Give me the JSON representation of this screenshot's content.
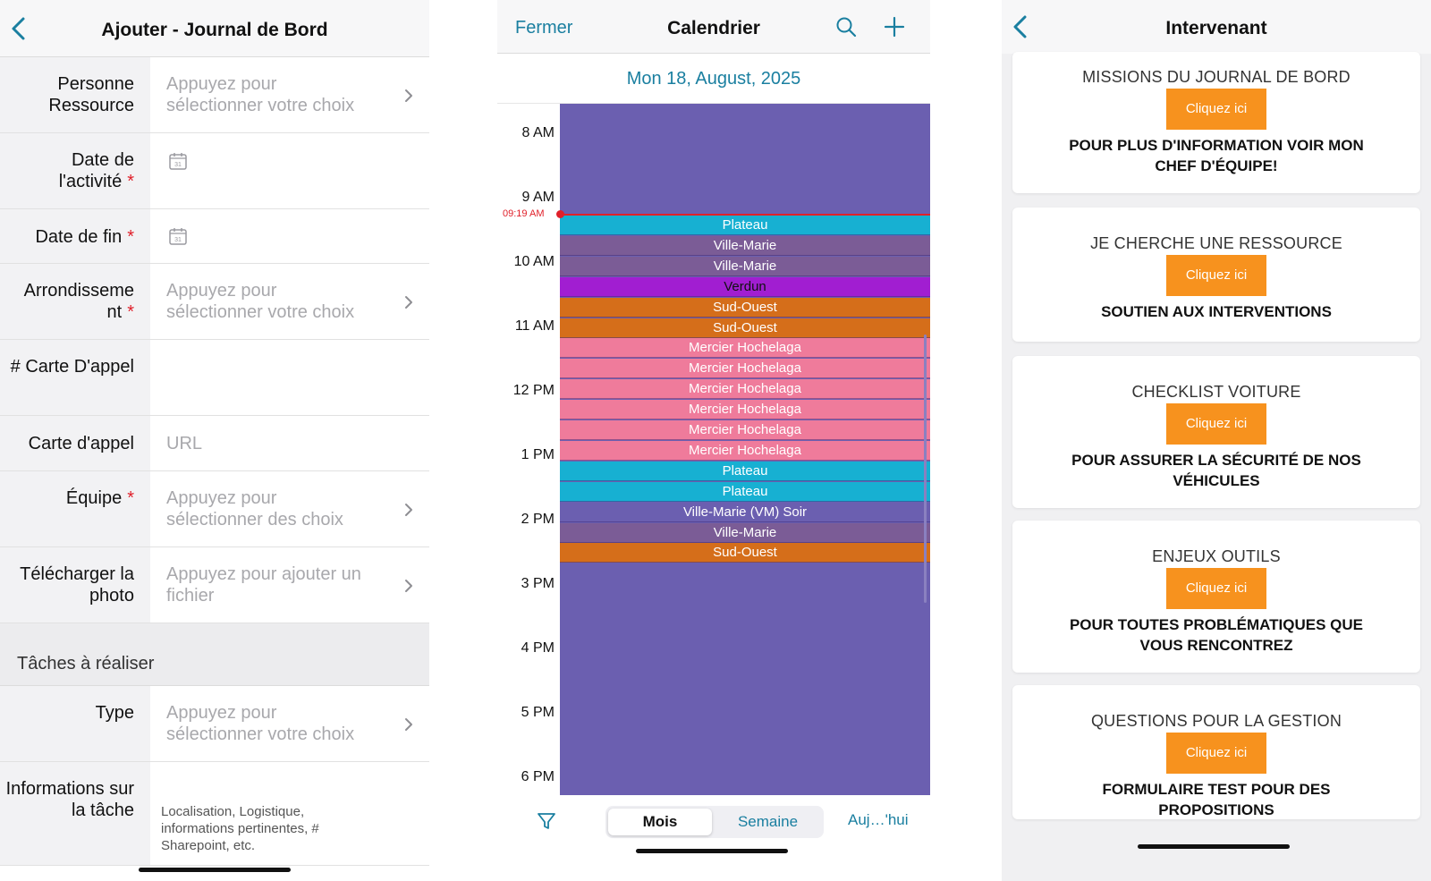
{
  "screen1": {
    "title": "Ajouter - Journal de Bord",
    "rows": [
      {
        "label": "Personne Ressource",
        "required": false,
        "value": "Appuyez pour sélectionner votre choix",
        "chevron": true
      },
      {
        "label": "Date de l'activité",
        "required": true,
        "value": "",
        "calendar_icon": true
      },
      {
        "label": "Date de fin",
        "required": true,
        "value": "",
        "calendar_icon": true
      },
      {
        "label": "Arrondisseme nt",
        "required": true,
        "value": "Appuyez pour sélectionner votre choix",
        "chevron": true
      },
      {
        "label": "# Carte D'appel",
        "required": false,
        "value": ""
      },
      {
        "label": "Carte d'appel",
        "required": false,
        "value": "URL"
      },
      {
        "label": "Équipe",
        "required": true,
        "value": "Appuyez pour sélectionner des choix",
        "chevron": true
      },
      {
        "label": "Télécharger la photo",
        "required": false,
        "value": "Appuyez pour ajouter un fichier",
        "chevron": true
      }
    ],
    "section_title": "Tâches à réaliser",
    "rows2": [
      {
        "label": "Type",
        "required": false,
        "value": "Appuyez pour sélectionner votre choix",
        "chevron": true
      },
      {
        "label": "Informations sur la tâche",
        "required": false,
        "value": "Localisation, Logistique, informations pertinentes, # Sharepoint, etc."
      }
    ],
    "required_mark": "*"
  },
  "screen2": {
    "close_label": "Fermer",
    "title": "Calendrier",
    "date": "Mon 18, August, 2025",
    "hours": [
      "8 AM",
      "9 AM",
      "10 AM",
      "11 AM",
      "12 PM",
      "1 PM",
      "2 PM",
      "3 PM",
      "4 PM",
      "5 PM",
      "6 PM"
    ],
    "current_time": "09:19 AM",
    "events": [
      {
        "name": "Plateau",
        "color": "#17b0d2"
      },
      {
        "name": "Ville-Marie",
        "color": "#7b5c96"
      },
      {
        "name": "Ville-Marie",
        "color": "#7b5c96"
      },
      {
        "name": "Verdun",
        "color": "#a11ed1"
      },
      {
        "name": "Sud-Ouest",
        "color": "#d56e1a"
      },
      {
        "name": "Sud-Ouest",
        "color": "#d56e1a"
      },
      {
        "name": "Mercier Hochelaga",
        "color": "#ef7b9b"
      },
      {
        "name": "Mercier Hochelaga",
        "color": "#ef7b9b"
      },
      {
        "name": "Mercier Hochelaga",
        "color": "#ef7b9b"
      },
      {
        "name": "Mercier Hochelaga",
        "color": "#ef7b9b"
      },
      {
        "name": "Mercier Hochelaga",
        "color": "#ef7b9b"
      },
      {
        "name": "Mercier Hochelaga",
        "color": "#ef7b9b"
      },
      {
        "name": "Plateau",
        "color": "#17b0d2"
      },
      {
        "name": "Plateau",
        "color": "#17b0d2"
      },
      {
        "name": "Ville-Marie (VM) Soir",
        "color": "#6b5fb0"
      },
      {
        "name": "Ville-Marie",
        "color": "#7b5c96"
      },
      {
        "name": "Sud-Ouest",
        "color": "#d56e1a"
      }
    ],
    "segments": {
      "active": "Mois",
      "inactive": "Semaine"
    },
    "today_label": "Auj…'hui",
    "background_color": "#6b5fb0"
  },
  "screen3": {
    "title": "Intervenant",
    "button_label": "Cliquez ici",
    "cards": [
      {
        "title": "MISSIONS DU JOURNAL DE BORD",
        "subtitle": "POUR PLUS D'INFORMATION VOIR MON CHEF D'ÉQUIPE!"
      },
      {
        "title": "JE CHERCHE UNE RESSOURCE",
        "subtitle": "SOUTIEN AUX INTERVENTIONS"
      },
      {
        "title": "CHECKLIST VOITURE",
        "subtitle": "POUR ASSURER LA SÉCURITÉ DE NOS VÉHICULES"
      },
      {
        "title": "ENJEUX OUTILS",
        "subtitle": "POUR TOUTES PROBLÉMATIQUES QUE VOUS RENCONTREZ"
      },
      {
        "title": "QUESTIONS POUR LA GESTION",
        "subtitle": "FORMULAIRE TEST POUR DES PROPOSITIONS"
      }
    ],
    "button_color": "#f7921e"
  }
}
